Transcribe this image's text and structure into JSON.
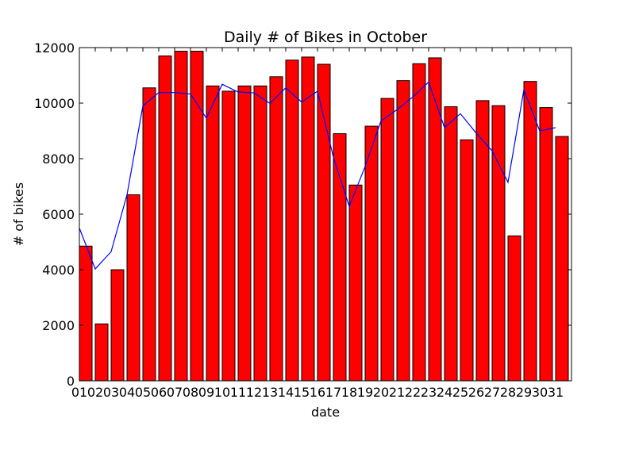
{
  "chart_data": {
    "type": "bar",
    "title": "Daily # of Bikes in October",
    "xlabel": "date",
    "ylabel": "# of bikes",
    "ylim": [
      0,
      12000
    ],
    "yticks": [
      0,
      2000,
      4000,
      6000,
      8000,
      10000,
      12000
    ],
    "categories": [
      "01",
      "02",
      "03",
      "04",
      "05",
      "06",
      "07",
      "08",
      "09",
      "10",
      "11",
      "12",
      "13",
      "14",
      "15",
      "16",
      "17",
      "18",
      "19",
      "20",
      "21",
      "22",
      "23",
      "24",
      "25",
      "26",
      "27",
      "28",
      "29",
      "30",
      "31"
    ],
    "grid": false,
    "series": [
      {
        "kind": "bar",
        "color": "#ff0000",
        "values": [
          4850,
          2050,
          4000,
          6700,
          10550,
          11700,
          11870,
          11870,
          10620,
          10430,
          10620,
          10620,
          10950,
          11550,
          11660,
          11400,
          8900,
          7050,
          9170,
          10170,
          10810,
          11420,
          11630,
          9870,
          8680,
          10090,
          9910,
          5220,
          10780,
          9840,
          8800
        ]
      },
      {
        "kind": "line",
        "color": "#0000ff",
        "values": [
          5500,
          4030,
          4650,
          6700,
          9900,
          10380,
          10380,
          10330,
          9460,
          10680,
          10400,
          10370,
          9990,
          10550,
          10040,
          10430,
          8050,
          6280,
          7720,
          9360,
          9760,
          10220,
          10760,
          9120,
          9620,
          8920,
          8280,
          7150,
          10480,
          9000,
          9120
        ]
      }
    ]
  }
}
